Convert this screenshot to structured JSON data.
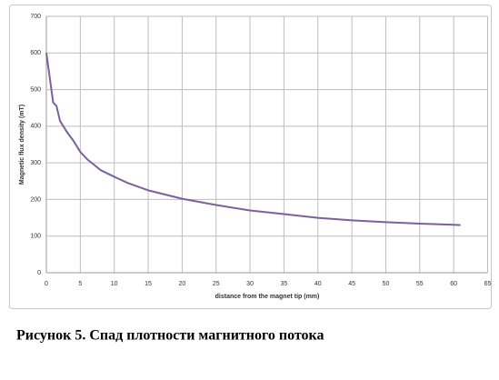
{
  "chart_data": {
    "type": "line",
    "caption": "Рисунок 5. Спад плотности магнитного потока",
    "x_label": "distance from the magnet tip  (mm)",
    "y_label": "Magnetic flux density (mT)",
    "x": [
      0,
      1,
      1.5,
      2,
      3,
      4,
      5,
      6,
      7,
      8,
      10,
      12,
      15,
      20,
      25,
      30,
      35,
      40,
      45,
      50,
      55,
      60,
      61
    ],
    "values": [
      600,
      465,
      455,
      415,
      385,
      360,
      330,
      310,
      295,
      280,
      262,
      245,
      225,
      202,
      185,
      170,
      160,
      150,
      143,
      138,
      134,
      131,
      130
    ],
    "color": "#7b6199",
    "xlim": [
      0,
      65
    ],
    "xticks": [
      0,
      5,
      10,
      15,
      20,
      25,
      30,
      35,
      40,
      45,
      50,
      55,
      60,
      65
    ],
    "ylim": [
      0,
      700
    ],
    "yticks": [
      0,
      100,
      200,
      300,
      400,
      500,
      600,
      700
    ],
    "grid": true
  }
}
